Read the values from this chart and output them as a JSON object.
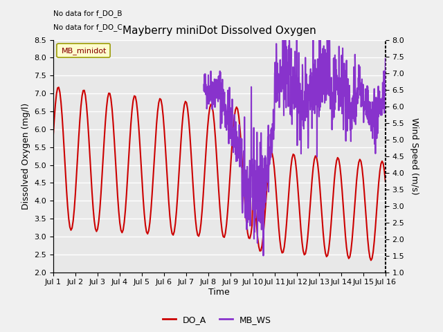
{
  "title": "Mayberry miniDot Dissolved Oxygen",
  "xlabel": "Time",
  "ylabel_left": "Dissolved Oxygen (mg/l)",
  "ylabel_right": "Wind Speed (m/s)",
  "no_data_text": [
    "No data for f_DO_B",
    "No data for f_DO_C"
  ],
  "legend_box_label": "MB_minidot",
  "legend_entries": [
    "DO_A",
    "MB_WS"
  ],
  "legend_colors": [
    "#cc0000",
    "#8833cc"
  ],
  "ylim_left": [
    2.0,
    8.5
  ],
  "ylim_right": [
    1.0,
    8.0
  ],
  "yticks_left": [
    2.0,
    2.5,
    3.0,
    3.5,
    4.0,
    4.5,
    5.0,
    5.5,
    6.0,
    6.5,
    7.0,
    7.5,
    8.0,
    8.5
  ],
  "yticks_right": [
    1.0,
    1.5,
    2.0,
    2.5,
    3.0,
    3.5,
    4.0,
    4.5,
    5.0,
    5.5,
    6.0,
    6.5,
    7.0,
    7.5,
    8.0
  ],
  "xtick_labels": [
    "Jul 1",
    "Jul 2",
    "Jul 3",
    "Jul 4",
    "Jul 5",
    "Jul 6",
    "Jul 7",
    "Jul 8",
    "Jul 9",
    "Jul 10",
    "Jul 11",
    "Jul 12",
    "Jul 13",
    "Jul 14",
    "Jul 15",
    "Jul 16"
  ],
  "background_color": "#f0f0f0",
  "plot_bg_color": "#e8e8e8",
  "grid_color": "#ffffff",
  "do_a_color": "#cc0000",
  "mb_ws_color": "#8833cc",
  "do_a_linewidth": 1.5,
  "mb_ws_linewidth": 1.5,
  "grid_linewidth": 1.0,
  "title_fontsize": 11,
  "axis_label_fontsize": 9,
  "tick_fontsize": 8
}
